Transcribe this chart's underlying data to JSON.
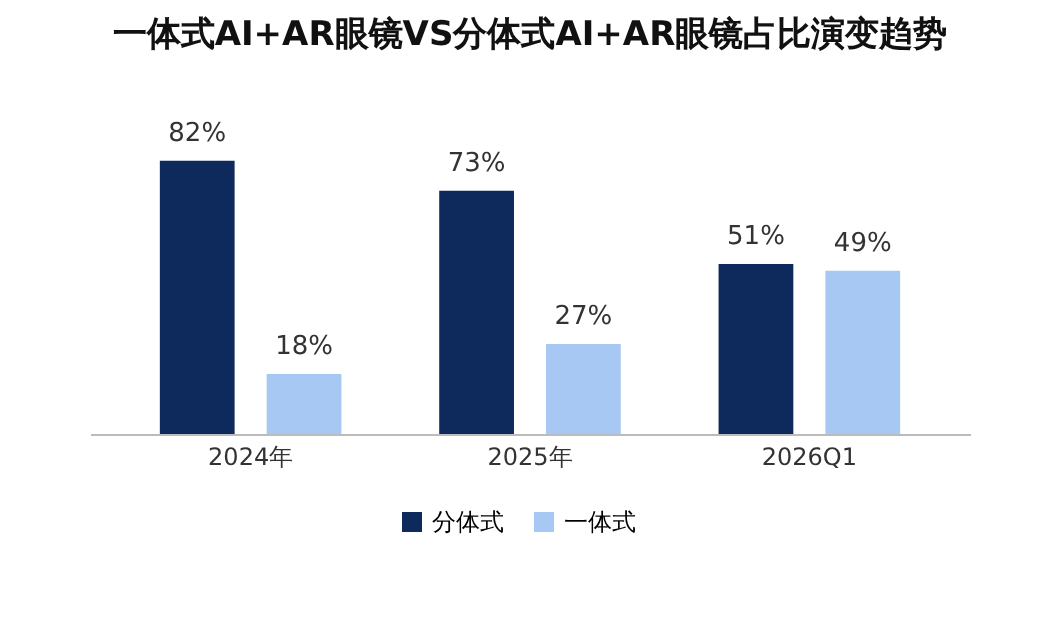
{
  "chart_data": {
    "type": "bar",
    "title": "一体式AI+AR眼镜VS分体式AI+AR眼镜占比演变趋势",
    "categories": [
      "2024年",
      "2025年",
      "2026Q1"
    ],
    "series": [
      {
        "name": "分体式",
        "color": "#0e2a5c",
        "values": [
          82,
          73,
          51
        ],
        "value_labels": [
          "82%",
          "73%",
          "51%"
        ]
      },
      {
        "name": "一体式",
        "color": "#a8c8f4",
        "values": [
          18,
          27,
          49
        ],
        "value_labels": [
          "18%",
          "27%",
          "49%"
        ]
      }
    ],
    "legend": "bottom"
  }
}
